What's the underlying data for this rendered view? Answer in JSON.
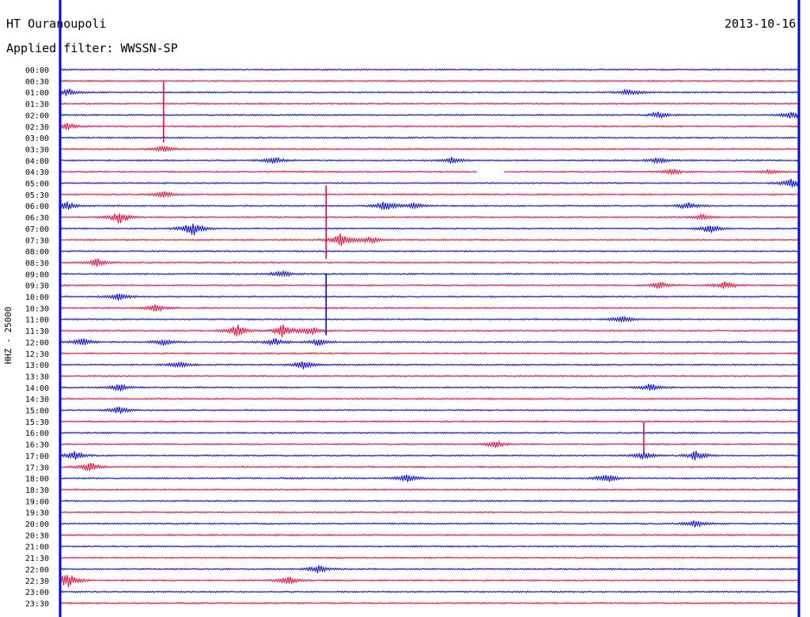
{
  "header": {
    "station": "HT Ouranoupoli",
    "date": "2013-10-16",
    "filter": "Applied filter: WWSSN-SP"
  },
  "colors": {
    "blue": "#0000ff",
    "red": "#ff0033",
    "text": "#000000"
  },
  "chart_data": {
    "type": "line",
    "title": "HT Ouranoupoli",
    "ylabel": "HHZ - 25000",
    "time_labels": [
      "00:00",
      "00:30",
      "01:00",
      "01:30",
      "02:00",
      "02:30",
      "03:00",
      "03:30",
      "04:00",
      "04:30",
      "05:00",
      "05:30",
      "06:00",
      "06:30",
      "07:00",
      "07:30",
      "08:00",
      "08:30",
      "09:00",
      "09:30",
      "10:00",
      "10:30",
      "11:00",
      "11:30",
      "12:00",
      "12:30",
      "13:00",
      "13:30",
      "14:00",
      "14:30",
      "15:00",
      "15:30",
      "16:00",
      "16:30",
      "17:00",
      "17:30",
      "18:00",
      "18:30",
      "19:00",
      "19:30",
      "20:00",
      "20:30",
      "21:00",
      "21:30",
      "22:00",
      "22:30",
      "23:00",
      "23:30"
    ],
    "trace_colors": [
      "blue",
      "red"
    ],
    "events": [
      {
        "trace": "01:00",
        "at": 0.01,
        "amp": 0.6
      },
      {
        "trace": "01:00",
        "at": 0.77,
        "amp": 0.55
      },
      {
        "trace": "02:00",
        "at": 0.81,
        "amp": 0.5
      },
      {
        "trace": "02:00",
        "at": 0.99,
        "amp": 0.55
      },
      {
        "trace": "02:30",
        "at": 0.01,
        "amp": 0.5
      },
      {
        "trace": "03:30",
        "at": 0.14,
        "amp": 0.5
      },
      {
        "trace": "04:00",
        "at": 0.29,
        "amp": 0.5
      },
      {
        "trace": "04:00",
        "at": 0.53,
        "amp": 0.5
      },
      {
        "trace": "04:00",
        "at": 0.81,
        "amp": 0.45
      },
      {
        "trace": "04:30",
        "at": 0.83,
        "amp": 0.4
      },
      {
        "trace": "04:30",
        "at": 0.96,
        "amp": 0.4
      },
      {
        "trace": "05:00",
        "at": 0.99,
        "amp": 0.7
      },
      {
        "trace": "05:30",
        "at": 0.14,
        "amp": 0.5
      },
      {
        "trace": "06:00",
        "at": 0.01,
        "amp": 0.6
      },
      {
        "trace": "06:00",
        "at": 0.44,
        "amp": 0.7
      },
      {
        "trace": "06:00",
        "at": 0.48,
        "amp": 0.5
      },
      {
        "trace": "06:00",
        "at": 0.85,
        "amp": 0.5
      },
      {
        "trace": "06:30",
        "at": 0.08,
        "amp": 0.9
      },
      {
        "trace": "06:30",
        "at": 0.87,
        "amp": 0.4
      },
      {
        "trace": "07:00",
        "at": 0.18,
        "amp": 1.2
      },
      {
        "trace": "07:00",
        "at": 0.88,
        "amp": 0.7
      },
      {
        "trace": "07:30",
        "at": 0.38,
        "amp": 1.0
      },
      {
        "trace": "07:30",
        "at": 0.42,
        "amp": 0.6
      },
      {
        "trace": "08:30",
        "at": 0.05,
        "amp": 0.6
      },
      {
        "trace": "09:00",
        "at": 0.3,
        "amp": 0.5
      },
      {
        "trace": "09:30",
        "at": 0.81,
        "amp": 0.55
      },
      {
        "trace": "09:30",
        "at": 0.9,
        "amp": 0.6
      },
      {
        "trace": "10:00",
        "at": 0.08,
        "amp": 0.55
      },
      {
        "trace": "10:30",
        "at": 0.13,
        "amp": 0.6
      },
      {
        "trace": "11:00",
        "at": 0.76,
        "amp": 0.55
      },
      {
        "trace": "11:30",
        "at": 0.24,
        "amp": 0.9
      },
      {
        "trace": "11:30",
        "at": 0.3,
        "amp": 1.0
      },
      {
        "trace": "11:30",
        "at": 0.34,
        "amp": 0.7
      },
      {
        "trace": "12:00",
        "at": 0.03,
        "amp": 0.6
      },
      {
        "trace": "12:00",
        "at": 0.14,
        "amp": 0.5
      },
      {
        "trace": "12:00",
        "at": 0.29,
        "amp": 0.6
      },
      {
        "trace": "12:00",
        "at": 0.35,
        "amp": 0.6
      },
      {
        "trace": "13:00",
        "at": 0.16,
        "amp": 0.5
      },
      {
        "trace": "13:00",
        "at": 0.33,
        "amp": 0.7
      },
      {
        "trace": "14:00",
        "at": 0.08,
        "amp": 0.6
      },
      {
        "trace": "14:00",
        "at": 0.8,
        "amp": 0.6
      },
      {
        "trace": "15:00",
        "at": 0.08,
        "amp": 0.55
      },
      {
        "trace": "16:30",
        "at": 0.59,
        "amp": 0.5
      },
      {
        "trace": "17:00",
        "at": 0.02,
        "amp": 0.7
      },
      {
        "trace": "17:00",
        "at": 0.79,
        "amp": 0.6
      },
      {
        "trace": "17:00",
        "at": 0.86,
        "amp": 0.7
      },
      {
        "trace": "17:30",
        "at": 0.04,
        "amp": 0.7
      },
      {
        "trace": "18:00",
        "at": 0.47,
        "amp": 0.7
      },
      {
        "trace": "18:00",
        "at": 0.74,
        "amp": 0.7
      },
      {
        "trace": "20:00",
        "at": 0.86,
        "amp": 0.5
      },
      {
        "trace": "22:00",
        "at": 0.35,
        "amp": 0.6
      },
      {
        "trace": "22:30",
        "at": 0.01,
        "amp": 1.2
      },
      {
        "trace": "22:30",
        "at": 0.31,
        "amp": 0.6
      }
    ],
    "spikes": [
      {
        "trace": "02:30",
        "at": 0.14,
        "amp": 2.5
      },
      {
        "trace": "07:30",
        "at": 0.36,
        "amp": 3.0
      },
      {
        "trace": "11:00",
        "at": 0.36,
        "amp": 2.5
      },
      {
        "trace": "16:30",
        "at": 0.79,
        "amp": 1.2
      }
    ],
    "gaps": [
      {
        "trace": "04:30",
        "from": 0.565,
        "to": 0.6
      }
    ]
  }
}
